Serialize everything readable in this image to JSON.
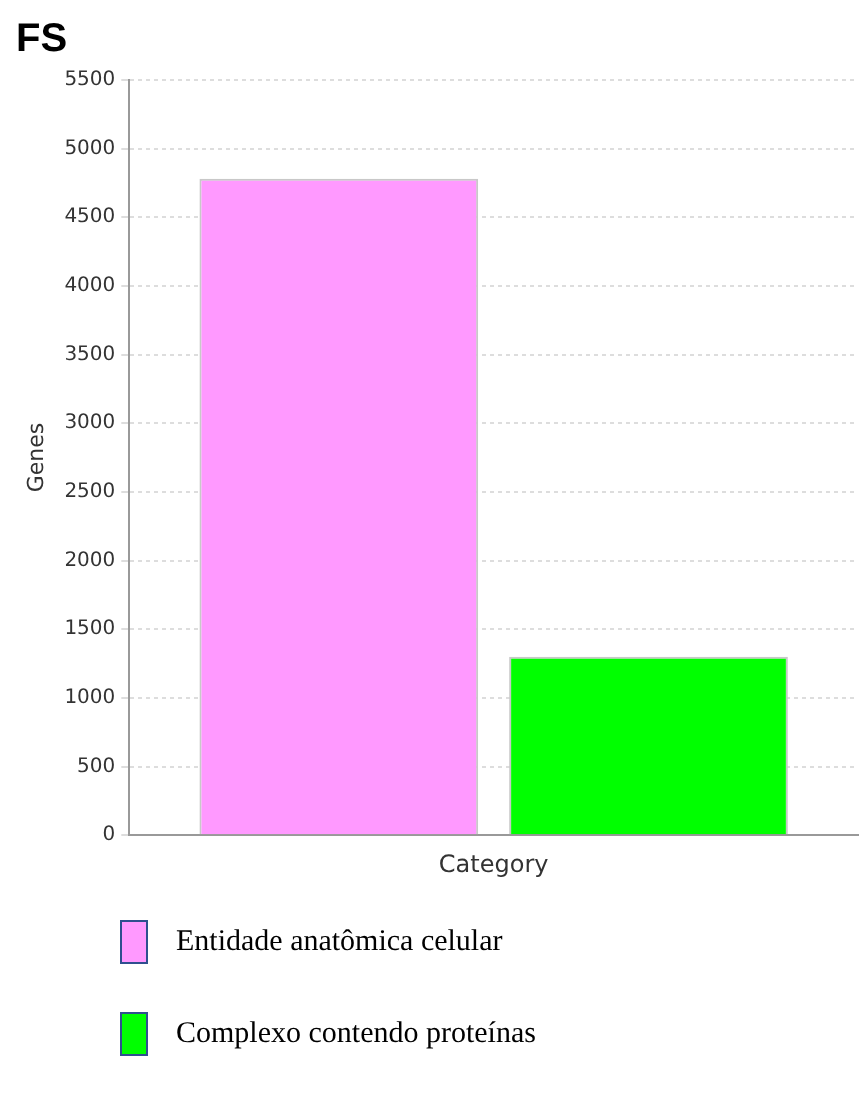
{
  "chart_data": {
    "type": "bar",
    "title": "FS",
    "ylabel": "Genes",
    "categories": [
      "Category"
    ],
    "series": [
      {
        "name": "Entidade anatômica celular",
        "color": "#ff99ff",
        "values": [
          4780
        ]
      },
      {
        "name": "Complexo contendo proteínas",
        "color": "#00ff00",
        "values": [
          1300
        ]
      }
    ],
    "ylim": [
      0,
      5500
    ],
    "yticks": [
      0,
      500,
      1000,
      1500,
      2000,
      2500,
      3000,
      3500,
      4000,
      4500,
      5000,
      5500
    ],
    "grid": "y",
    "legend": "bottom"
  }
}
